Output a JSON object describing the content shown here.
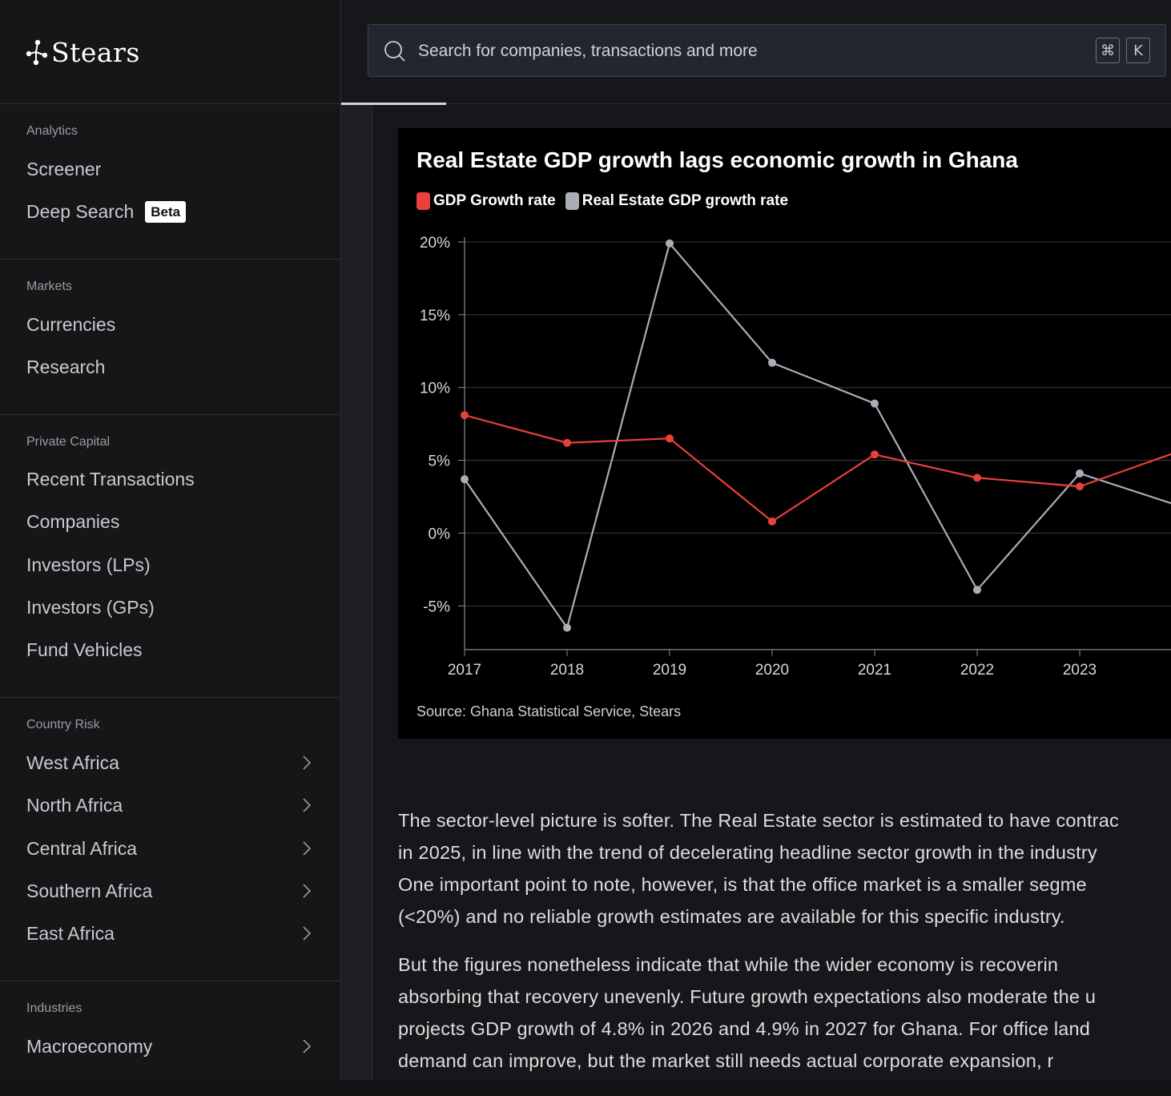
{
  "brand": {
    "name": "Stears"
  },
  "sidebar": {
    "sections": [
      {
        "heading": "Analytics",
        "items": [
          {
            "label": "Screener"
          },
          {
            "label": "Deep Search",
            "badge": "Beta"
          }
        ]
      },
      {
        "heading": "Markets",
        "items": [
          {
            "label": "Currencies"
          },
          {
            "label": "Research"
          }
        ]
      },
      {
        "heading": "Private Capital",
        "items": [
          {
            "label": "Recent Transactions"
          },
          {
            "label": "Companies"
          },
          {
            "label": "Investors (LPs)"
          },
          {
            "label": "Investors (GPs)"
          },
          {
            "label": "Fund Vehicles"
          }
        ]
      },
      {
        "heading": "Country Risk",
        "items": [
          {
            "label": "West Africa"
          },
          {
            "label": "North Africa"
          },
          {
            "label": "Central Africa"
          },
          {
            "label": "Southern Africa"
          },
          {
            "label": "East Africa"
          }
        ]
      },
      {
        "heading": "Industries",
        "items": [
          {
            "label": "Macroeconomy"
          }
        ]
      }
    ]
  },
  "search": {
    "placeholder": "Search for companies, transactions and more",
    "shortcut_cmd": "⌘",
    "shortcut_key": "K"
  },
  "chart_data": {
    "type": "line",
    "title": "Real Estate GDP growth lags economic growth in Ghana",
    "x": [
      "2017",
      "2018",
      "2019",
      "2020",
      "2021",
      "2022",
      "2023",
      "2"
    ],
    "series": [
      {
        "name": "GDP Growth rate",
        "color": "#e8403a",
        "values": [
          8.1,
          6.2,
          6.5,
          0.8,
          5.4,
          3.8,
          3.2,
          5.7
        ]
      },
      {
        "name": "Real Estate GDP growth rate",
        "color": "#a9adb6",
        "values": [
          3.7,
          -6.5,
          19.9,
          11.7,
          8.9,
          -3.9,
          4.1,
          1.8
        ]
      }
    ],
    "ylim": [
      -8,
      20
    ],
    "yticks": [
      "20%",
      "15%",
      "10%",
      "5%",
      "0%",
      "-5%"
    ],
    "ytick_values": [
      20,
      15,
      10,
      5,
      0,
      -5
    ],
    "grid": true,
    "legend": "top-left",
    "source": "Source: Ghana Statistical Service, Stears"
  },
  "article": {
    "p1_lines": [
      "The sector-level picture is softer. The Real Estate sector is estimated to have contrac",
      "in 2025, in line with the trend of decelerating headline sector growth in the industry",
      "One important point to note, however, is that the office market is a smaller segme",
      "(<20%) and no reliable growth estimates are available for this specific industry."
    ],
    "p2_lines": [
      "But the figures nonetheless indicate that while the wider economy is recoverin",
      "absorbing that recovery unevenly. Future growth expectations also moderate the u",
      "projects GDP growth of 4.8% in 2026 and 4.9% in 2027 for Ghana. For office land",
      "demand can improve, but the market still needs actual corporate expansion, r"
    ]
  }
}
